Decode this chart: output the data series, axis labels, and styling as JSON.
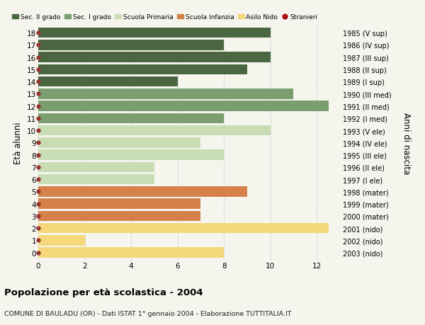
{
  "ages": [
    18,
    17,
    16,
    15,
    14,
    13,
    12,
    11,
    10,
    9,
    8,
    7,
    6,
    5,
    4,
    3,
    2,
    1,
    0
  ],
  "right_labels": [
    "1985 (V sup)",
    "1986 (IV sup)",
    "1987 (III sup)",
    "1988 (II sup)",
    "1989 (I sup)",
    "1990 (III med)",
    "1991 (II med)",
    "1992 (I med)",
    "1993 (V ele)",
    "1994 (IV ele)",
    "1995 (III ele)",
    "1996 (II ele)",
    "1997 (I ele)",
    "1998 (mater)",
    "1999 (mater)",
    "2000 (mater)",
    "2001 (nido)",
    "2002 (nido)",
    "2003 (nido)"
  ],
  "values": [
    10,
    8,
    10,
    9,
    6,
    11,
    12.5,
    8,
    10,
    7,
    8,
    5,
    5,
    9,
    7,
    7,
    12.5,
    2,
    8
  ],
  "colors": [
    "#4a6741",
    "#4a6741",
    "#4a6741",
    "#4a6741",
    "#4a6741",
    "#7a9e6e",
    "#7a9e6e",
    "#7a9e6e",
    "#c8ddb4",
    "#c8ddb4",
    "#c8ddb4",
    "#c8ddb4",
    "#c8ddb4",
    "#d4824a",
    "#d4824a",
    "#d4824a",
    "#f5d87a",
    "#f5d87a",
    "#f5d87a"
  ],
  "legend_labels": [
    "Sec. II grado",
    "Sec. I grado",
    "Scuola Primaria",
    "Scuola Infanzia",
    "Asilo Nido",
    "Stranieri"
  ],
  "legend_colors": [
    "#4a6741",
    "#7a9e6e",
    "#c8ddb4",
    "#d4824a",
    "#f5d87a",
    "#aa1111"
  ],
  "title": "Popolazione per età scolastica - 2004",
  "subtitle": "COMUNE DI BAULADU (OR) - Dati ISTAT 1° gennaio 2004 - Elaborazione TUTTITALIA.IT",
  "ylabel": "Età alunni",
  "ylabel_right": "Anni di nascita",
  "xlim": [
    0,
    13
  ],
  "xticks": [
    0,
    2,
    4,
    6,
    8,
    10,
    12
  ],
  "dot_color": "#993333",
  "bar_height": 0.85,
  "bg_color": "#f5f5ee",
  "grid_color": "#cccccc"
}
